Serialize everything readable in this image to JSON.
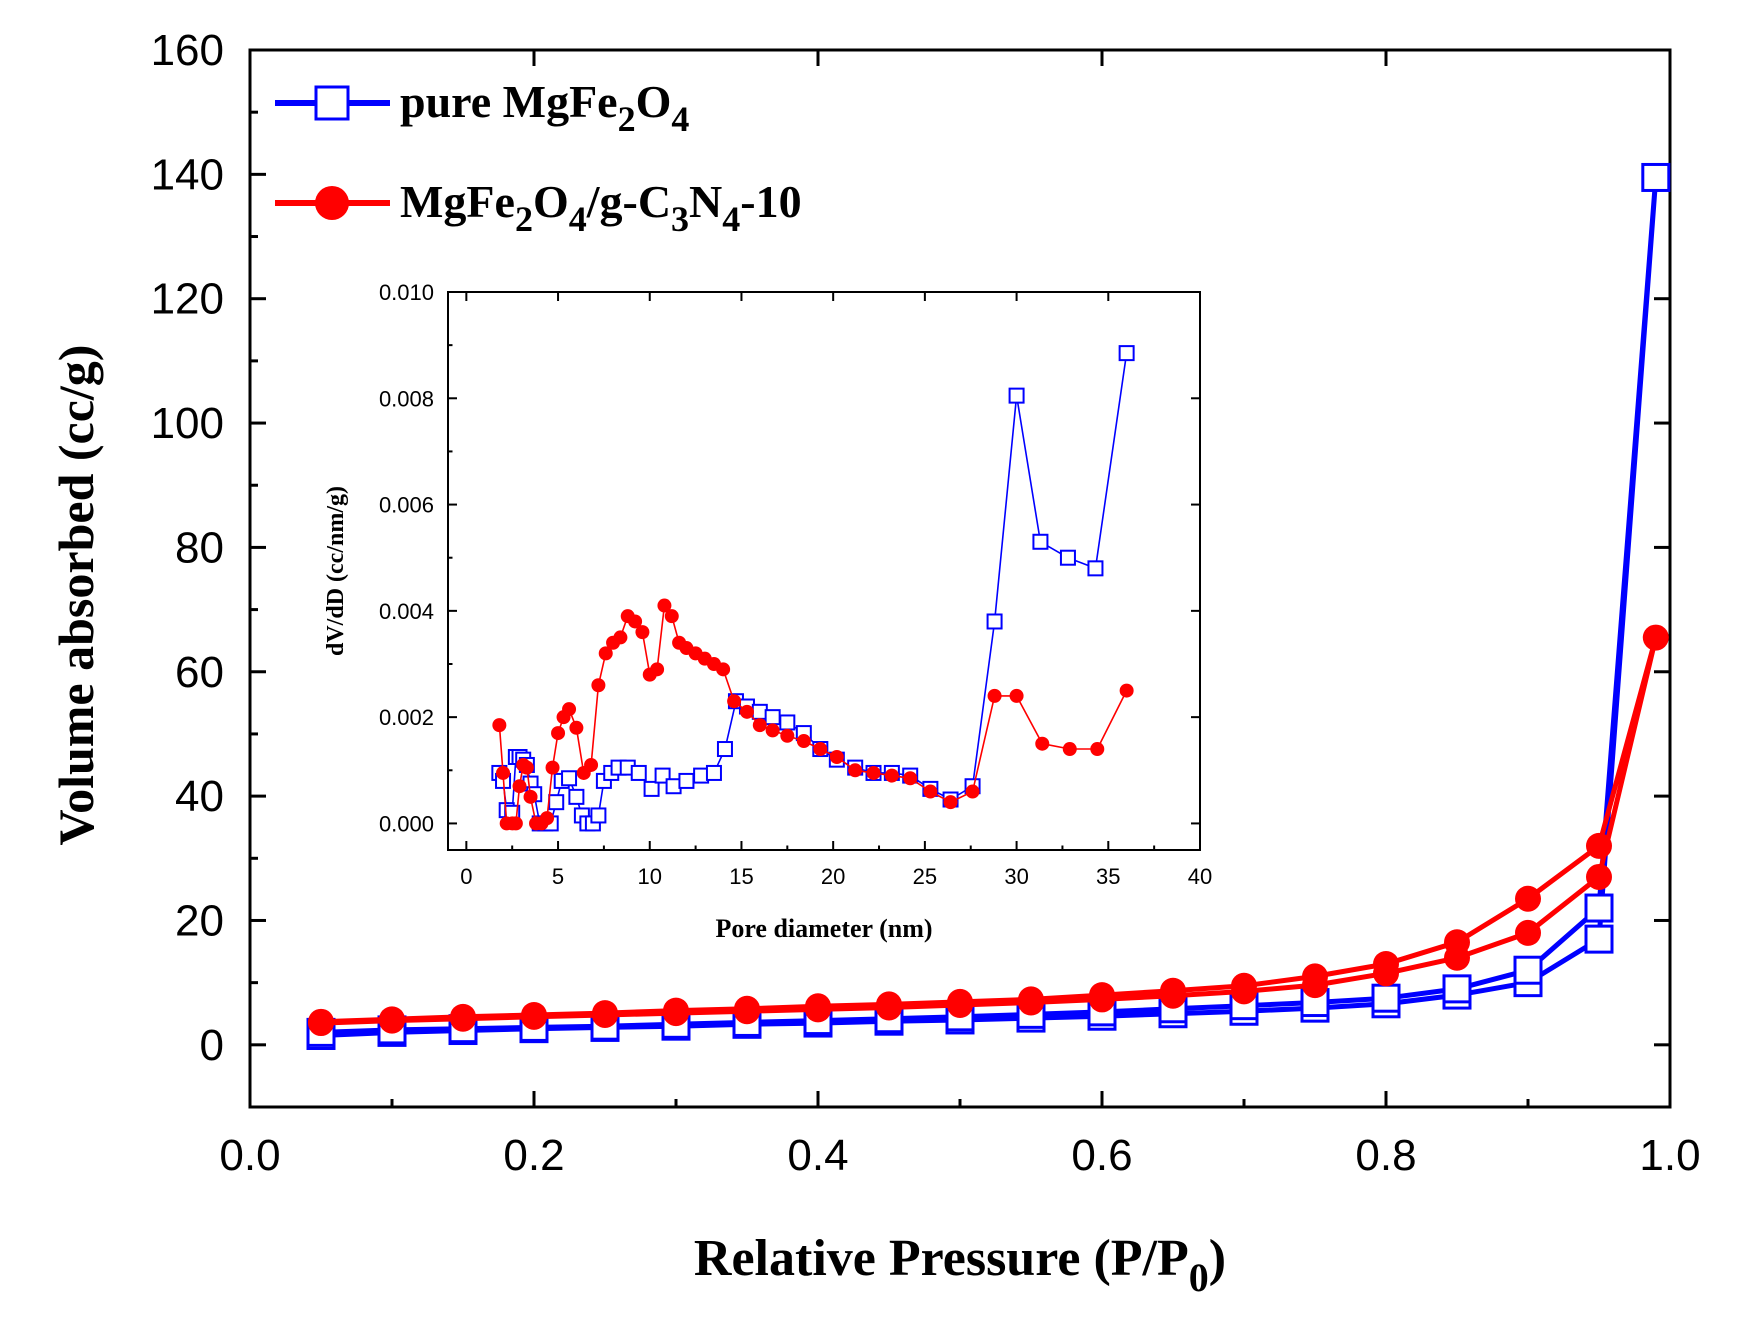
{
  "chart_data": [
    {
      "type": "line",
      "role": "main",
      "xlabel": {
        "text": "Relative Pressure (P/P",
        "sub": "0",
        "close": ")"
      },
      "ylabel": "Volume absorbed (cc/g)",
      "xlim": [
        0.0,
        1.0
      ],
      "ylim": [
        -10,
        160
      ],
      "x_ticks": [
        "0.0",
        "0.2",
        "0.4",
        "0.6",
        "0.8",
        "1.0"
      ],
      "y_ticks": [
        "0",
        "20",
        "40",
        "60",
        "80",
        "100",
        "120",
        "140",
        "160"
      ],
      "legend_position": "top-left",
      "series": [
        {
          "name_parts": [
            "pure MgFe",
            "2",
            "O",
            "4"
          ],
          "color": "#0000ff",
          "marker": "open-square",
          "x": [
            0.05,
            0.1,
            0.15,
            0.2,
            0.25,
            0.3,
            0.35,
            0.4,
            0.45,
            0.5,
            0.55,
            0.6,
            0.65,
            0.7,
            0.75,
            0.8,
            0.85,
            0.9,
            0.95,
            0.99,
            0.95,
            0.9,
            0.85,
            0.8,
            0.75,
            0.7,
            0.65,
            0.6,
            0.55,
            0.5,
            0.45,
            0.4,
            0.35,
            0.3,
            0.25,
            0.2,
            0.15,
            0.1,
            0.05
          ],
          "y": [
            1.5,
            2.0,
            2.3,
            2.6,
            2.8,
            3.0,
            3.3,
            3.5,
            3.8,
            4.0,
            4.3,
            4.6,
            5.0,
            5.4,
            5.9,
            6.6,
            8.0,
            10.0,
            17.0,
            139.5,
            22.0,
            12.0,
            9.0,
            7.5,
            6.8,
            6.3,
            5.8,
            5.3,
            4.9,
            4.5,
            4.2,
            3.9,
            3.6,
            3.3,
            3.0,
            2.8,
            2.6,
            2.4,
            2.0
          ]
        },
        {
          "name_parts": [
            "MgFe",
            "2",
            "O",
            "4",
            "/g-C",
            "3",
            "N",
            "4",
            "-10"
          ],
          "color": "#ff0000",
          "marker": "filled-circle",
          "x": [
            0.05,
            0.1,
            0.15,
            0.2,
            0.25,
            0.3,
            0.35,
            0.4,
            0.45,
            0.5,
            0.55,
            0.6,
            0.65,
            0.7,
            0.75,
            0.8,
            0.85,
            0.9,
            0.95,
            0.99,
            0.95,
            0.9,
            0.85,
            0.8,
            0.75,
            0.7,
            0.65,
            0.6,
            0.55,
            0.5,
            0.45,
            0.4,
            0.35,
            0.3,
            0.25,
            0.2,
            0.15,
            0.1,
            0.05
          ],
          "y": [
            3.5,
            3.9,
            4.2,
            4.5,
            4.8,
            5.1,
            5.4,
            5.7,
            6.0,
            6.4,
            6.8,
            7.3,
            7.9,
            8.6,
            9.6,
            11.5,
            14.0,
            18.0,
            27.0,
            65.5,
            32.0,
            23.5,
            16.5,
            13.0,
            11.0,
            9.5,
            8.7,
            8.0,
            7.3,
            6.9,
            6.5,
            6.2,
            5.8,
            5.5,
            5.1,
            4.8,
            4.5,
            4.1,
            3.7
          ]
        }
      ]
    },
    {
      "type": "line",
      "role": "inset",
      "legend_position": "none",
      "xlabel": "Pore diameter (nm)",
      "ylabel": "dV/dD (cc/nm/g)",
      "xlim": [
        -1,
        40
      ],
      "ylim": [
        -0.0005,
        0.01
      ],
      "x_ticks": [
        "0",
        "5",
        "10",
        "15",
        "20",
        "25",
        "30",
        "35",
        "40"
      ],
      "y_ticks": [
        "0.000",
        "0.002",
        "0.004",
        "0.006",
        "0.008",
        "0.010"
      ],
      "series": [
        {
          "name": "pure MgFe2O4",
          "color": "#0000ff",
          "marker": "open-square",
          "x": [
            1.8,
            2.0,
            2.2,
            2.5,
            2.7,
            2.9,
            3.1,
            3.3,
            3.5,
            3.7,
            4.0,
            4.3,
            4.6,
            4.9,
            5.2,
            5.6,
            6.0,
            6.3,
            6.6,
            6.9,
            7.2,
            7.5,
            7.9,
            8.3,
            8.8,
            9.4,
            10.1,
            10.7,
            11.3,
            12.0,
            12.8,
            13.5,
            14.1,
            14.7,
            15.3,
            16.0,
            16.7,
            17.5,
            18.4,
            19.3,
            20.2,
            21.2,
            22.2,
            23.2,
            24.2,
            25.3,
            26.4,
            27.6,
            28.8,
            30.0,
            31.3,
            32.8,
            34.3,
            36.0
          ],
          "y": [
            0.00095,
            0.0008,
            0.00025,
            0.0002,
            0.00125,
            0.00125,
            0.0012,
            0.0011,
            0.00075,
            0.00055,
            0.0,
            0.0,
            0.0,
            0.0004,
            0.0008,
            0.00085,
            0.0005,
            0.00015,
            0.0,
            0.0,
            0.00015,
            0.0008,
            0.00095,
            0.00105,
            0.00105,
            0.00095,
            0.00065,
            0.0009,
            0.0007,
            0.0008,
            0.0009,
            0.00095,
            0.0014,
            0.0023,
            0.0022,
            0.0021,
            0.002,
            0.0019,
            0.0017,
            0.0014,
            0.0012,
            0.00105,
            0.00095,
            0.00095,
            0.0009,
            0.00065,
            0.00045,
            0.0007,
            0.0038,
            0.00805,
            0.0053,
            0.005,
            0.0048,
            0.00885
          ]
        },
        {
          "name": "MgFe2O4/g-C3N4-10",
          "color": "#ff0000",
          "marker": "filled-circle",
          "x": [
            1.8,
            2.0,
            2.2,
            2.5,
            2.7,
            2.9,
            3.1,
            3.3,
            3.5,
            3.8,
            4.1,
            4.4,
            4.7,
            5.0,
            5.3,
            5.6,
            6.0,
            6.4,
            6.8,
            7.2,
            7.6,
            8.0,
            8.4,
            8.8,
            9.2,
            9.6,
            10.0,
            10.4,
            10.8,
            11.2,
            11.6,
            12.0,
            12.5,
            13.0,
            13.5,
            14.0,
            14.6,
            15.3,
            16.0,
            16.7,
            17.5,
            18.4,
            19.3,
            20.2,
            21.2,
            22.2,
            23.2,
            24.2,
            25.3,
            26.4,
            27.6,
            28.8,
            30.0,
            31.4,
            32.9,
            34.4,
            36.0
          ],
          "y": [
            0.00185,
            0.00095,
            0.0,
            0.0,
            0.0,
            0.0007,
            0.0011,
            0.00105,
            0.0005,
            0.0,
            0.0,
            0.0001,
            0.00105,
            0.0017,
            0.002,
            0.00215,
            0.0018,
            0.00095,
            0.0011,
            0.0026,
            0.0032,
            0.0034,
            0.0035,
            0.0039,
            0.0038,
            0.0036,
            0.0028,
            0.0029,
            0.0041,
            0.0039,
            0.0034,
            0.0033,
            0.0032,
            0.0031,
            0.003,
            0.0029,
            0.0023,
            0.0021,
            0.00185,
            0.00175,
            0.00165,
            0.00155,
            0.0014,
            0.00125,
            0.001,
            0.00095,
            0.0009,
            0.00085,
            0.0006,
            0.0004,
            0.0006,
            0.0024,
            0.0024,
            0.0015,
            0.0014,
            0.0014,
            0.0025
          ]
        }
      ]
    }
  ]
}
